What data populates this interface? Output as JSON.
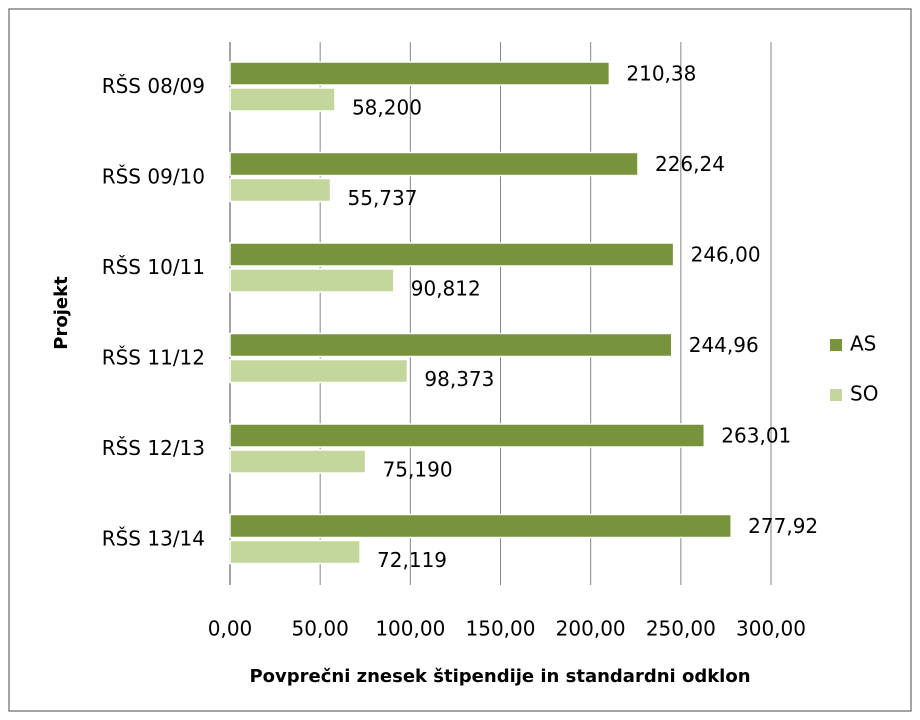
{
  "chart_data": {
    "type": "hbar",
    "categories": [
      "RŠS 08/09",
      "RŠS 09/10",
      "RŠS 10/11",
      "RŠS 11/12",
      "RŠS 12/13",
      "RŠS 13/14"
    ],
    "series": [
      {
        "name": "AS",
        "color": "#77933c",
        "values": [
          210.38,
          226.24,
          246.0,
          244.96,
          263.01,
          277.92
        ],
        "value_labels": [
          "210,38",
          "226,24",
          "246,00",
          "244,96",
          "263,01",
          "277,92"
        ]
      },
      {
        "name": "SO",
        "color": "#c3d69b",
        "values": [
          58.2,
          55.737,
          90.812,
          98.373,
          75.19,
          72.119
        ],
        "value_labels": [
          "58,200",
          "55,737",
          "90,812",
          "98,373",
          "75,190",
          "72,119"
        ]
      }
    ],
    "xlim": [
      0,
      300
    ],
    "xticks": [
      {
        "value": 0,
        "label": "0,00"
      },
      {
        "value": 50,
        "label": "50,00"
      },
      {
        "value": 100,
        "label": "100,00"
      },
      {
        "value": 150,
        "label": "150,00"
      },
      {
        "value": 200,
        "label": "200,00"
      },
      {
        "value": 250,
        "label": "250,00"
      },
      {
        "value": 300,
        "label": "300,00"
      }
    ],
    "grid": true,
    "xlabel": "Povprečni znesek štipendije in standardni odklon",
    "ylabel": "Projekt",
    "legend": "right"
  }
}
